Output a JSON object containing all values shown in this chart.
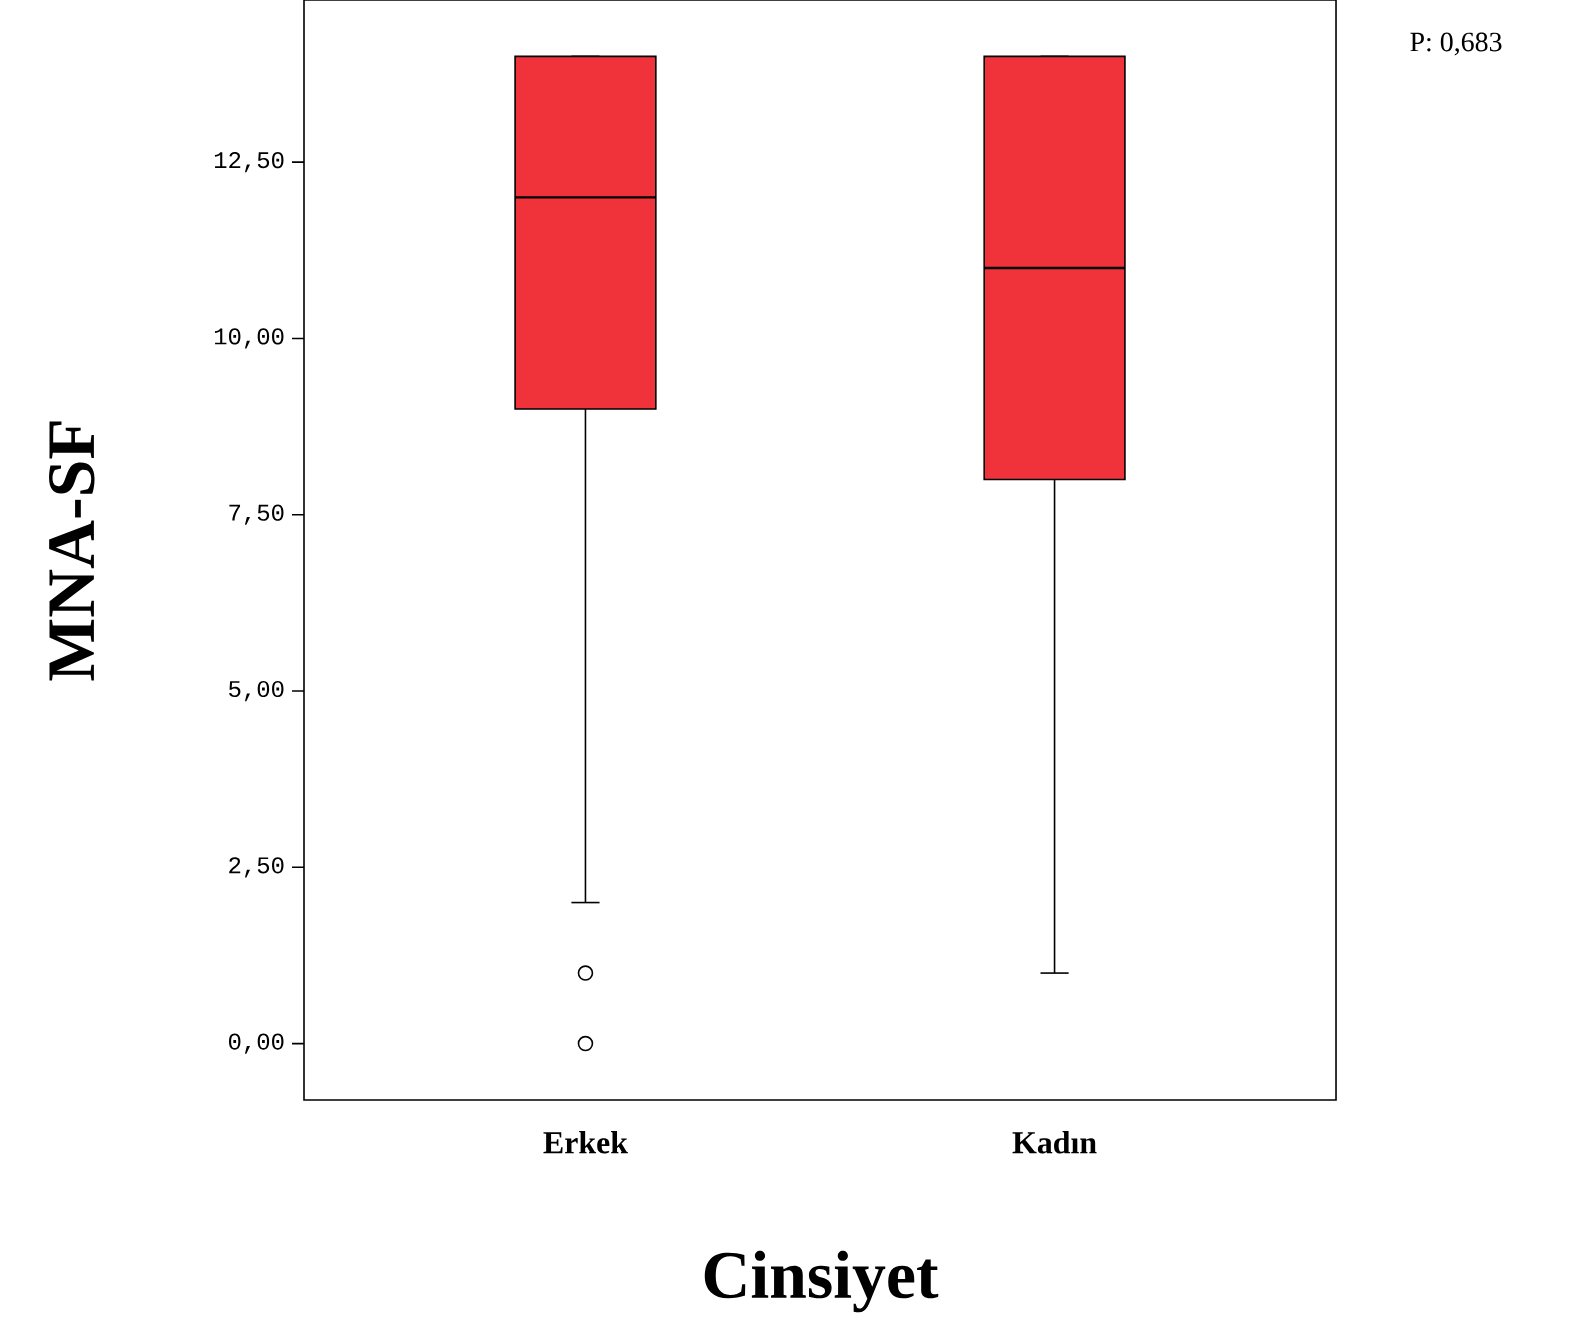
{
  "chart_data": {
    "type": "box",
    "xlabel": "Cinsiyet",
    "ylabel": "MNA-SF",
    "categories": [
      "Erkek",
      "Kadın"
    ],
    "color": "#f0333a",
    "boxes": [
      {
        "low": 2,
        "q1": 9,
        "median": 12,
        "q3": 14,
        "high": 14,
        "outliers": [
          1,
          0
        ]
      },
      {
        "low": 1,
        "q1": 8,
        "median": 11,
        "q3": 14,
        "high": 14
      }
    ],
    "ylim": [
      -0.8,
      14.8
    ],
    "yticks": [
      {
        "value": 0,
        "label": "0,00"
      },
      {
        "value": 2.5,
        "label": "2,50"
      },
      {
        "value": 5,
        "label": "5,00"
      },
      {
        "value": 7.5,
        "label": "7,50"
      },
      {
        "value": 10,
        "label": "10,00"
      },
      {
        "value": 12.5,
        "label": "12,50"
      }
    ],
    "grid": false,
    "annotations": [
      "P: 0,683"
    ]
  }
}
